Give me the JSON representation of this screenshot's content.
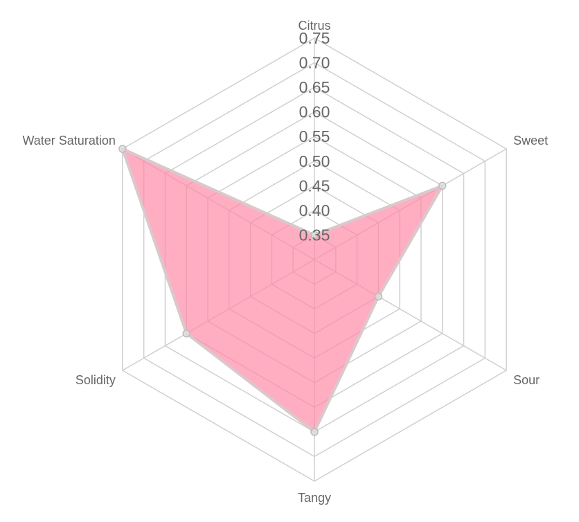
{
  "chart_data": {
    "type": "radar",
    "axes": [
      "Citrus",
      "Sweet",
      "Sour",
      "Tangy",
      "Solidity",
      "Water Saturation"
    ],
    "series": [
      {
        "values": [
          0.35,
          0.6,
          0.45,
          0.65,
          0.6,
          0.75
        ],
        "fill_color": "#ff88a5",
        "line_color": "#d9c9cc"
      }
    ],
    "r_ticks": [
      0.35,
      0.4,
      0.45,
      0.5,
      0.55,
      0.6,
      0.65,
      0.7,
      0.75
    ],
    "r_tick_labels": [
      "0.35",
      "0.40",
      "0.45",
      "0.50",
      "0.55",
      "0.60",
      "0.65",
      "0.70",
      "0.75"
    ],
    "r_range": [
      0.3,
      0.75
    ],
    "grid": true,
    "legend": "none"
  }
}
